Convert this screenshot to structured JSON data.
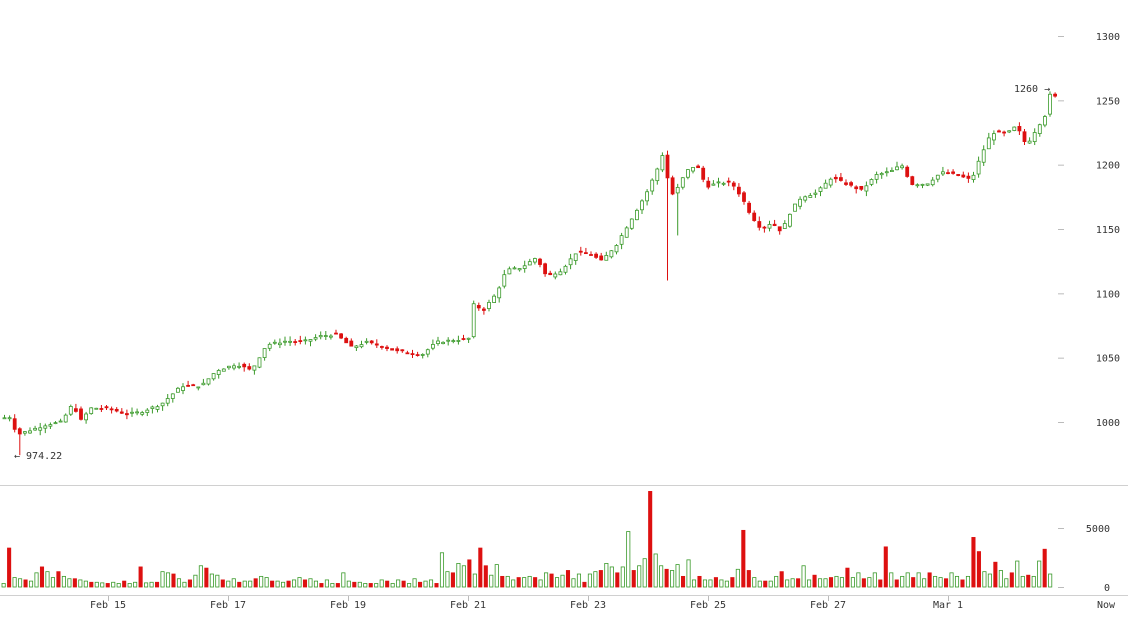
{
  "colors": {
    "up": "#3a9a2a",
    "down": "#dd1010",
    "up_fill": "#ffffff",
    "grid": "#d0d0d0"
  },
  "chart_data": [
    {
      "type": "candlestick",
      "title": "",
      "xlabel": "",
      "ylabel": "",
      "ylim": [
        960,
        1310
      ],
      "y_ticks": [
        1000,
        1050,
        1100,
        1150,
        1200,
        1250,
        1300
      ],
      "x_tick_labels": [
        "Feb 15",
        "Feb 17",
        "Feb 19",
        "Feb 21",
        "Feb 23",
        "Feb 25",
        "Feb 27",
        "Mar 1",
        "Now"
      ],
      "annotations": {
        "low_label": "← 974.22",
        "high_label": "1260 →"
      },
      "close_points": [
        [
          0,
          1003
        ],
        [
          10,
          1004
        ],
        [
          15,
          990
        ],
        [
          30,
          994
        ],
        [
          45,
          998
        ],
        [
          60,
          1000
        ],
        [
          72,
          1015
        ],
        [
          78,
          1000
        ],
        [
          90,
          1011
        ],
        [
          110,
          1010
        ],
        [
          125,
          1006
        ],
        [
          140,
          1008
        ],
        [
          160,
          1014
        ],
        [
          180,
          1028
        ],
        [
          200,
          1028
        ],
        [
          215,
          1040
        ],
        [
          235,
          1045
        ],
        [
          250,
          1040
        ],
        [
          265,
          1060
        ],
        [
          285,
          1063
        ],
        [
          300,
          1062
        ],
        [
          320,
          1067
        ],
        [
          335,
          1068
        ],
        [
          350,
          1058
        ],
        [
          365,
          1062
        ],
        [
          380,
          1059
        ],
        [
          395,
          1055
        ],
        [
          410,
          1054
        ],
        [
          420,
          1052
        ],
        [
          435,
          1062
        ],
        [
          455,
          1064
        ],
        [
          467,
          1064
        ],
        [
          470,
          1092
        ],
        [
          482,
          1087
        ],
        [
          495,
          1100
        ],
        [
          505,
          1118
        ],
        [
          520,
          1120
        ],
        [
          535,
          1128
        ],
        [
          545,
          1113
        ],
        [
          560,
          1118
        ],
        [
          575,
          1132
        ],
        [
          590,
          1130
        ],
        [
          600,
          1125
        ],
        [
          615,
          1138
        ],
        [
          630,
          1158
        ],
        [
          645,
          1178
        ],
        [
          655,
          1195
        ],
        [
          663,
          1212
        ],
        [
          668,
          1175
        ],
        [
          675,
          1180
        ],
        [
          685,
          1195
        ],
        [
          695,
          1200
        ],
        [
          705,
          1183
        ],
        [
          718,
          1186
        ],
        [
          730,
          1186
        ],
        [
          740,
          1175
        ],
        [
          750,
          1160
        ],
        [
          760,
          1150
        ],
        [
          770,
          1155
        ],
        [
          780,
          1148
        ],
        [
          790,
          1165
        ],
        [
          800,
          1175
        ],
        [
          815,
          1178
        ],
        [
          830,
          1190
        ],
        [
          845,
          1185
        ],
        [
          860,
          1180
        ],
        [
          875,
          1192
        ],
        [
          890,
          1195
        ],
        [
          900,
          1200
        ],
        [
          910,
          1185
        ],
        [
          925,
          1185
        ],
        [
          940,
          1194
        ],
        [
          955,
          1192
        ],
        [
          970,
          1188
        ],
        [
          980,
          1208
        ],
        [
          990,
          1225
        ],
        [
          1005,
          1224
        ],
        [
          1015,
          1230
        ],
        [
          1025,
          1215
        ],
        [
          1035,
          1228
        ],
        [
          1045,
          1240
        ],
        [
          1050,
          1260
        ],
        [
          1054,
          1252
        ]
      ]
    },
    {
      "type": "bar",
      "title": "",
      "ylabel": "",
      "ylim": [
        0,
        8500
      ],
      "y_ticks": [
        0,
        5000
      ],
      "values": [
        300,
        3300,
        800,
        700,
        600,
        500,
        1200,
        1700,
        1300,
        800,
        1300,
        900,
        700,
        700,
        600,
        500,
        400,
        400,
        350,
        300,
        400,
        300,
        500,
        300,
        400,
        1700,
        350,
        400,
        400,
        1300,
        1200,
        1100,
        700,
        400,
        600,
        1000,
        1800,
        1600,
        1100,
        1000,
        600,
        500,
        700,
        400,
        500,
        500,
        700,
        900,
        800,
        500,
        500,
        400,
        500,
        600,
        800,
        600,
        700,
        500,
        300,
        600,
        300,
        300,
        1200,
        500,
        400,
        400,
        300,
        300,
        300,
        600,
        500,
        300,
        600,
        500,
        300,
        700,
        400,
        500,
        600,
        300,
        2900,
        1300,
        1200,
        2000,
        1800,
        2300,
        1100,
        3300,
        1800,
        1000,
        1900,
        900,
        900,
        600,
        800,
        800,
        900,
        800,
        600,
        1200,
        1100,
        800,
        1000,
        1400,
        700,
        1100,
        400,
        1100,
        1300,
        1400,
        2000,
        1700,
        1200,
        1700,
        4700,
        1400,
        1800,
        2400,
        8100,
        2800,
        1800,
        1500,
        1400,
        1900,
        900,
        2300,
        600,
        900,
        600,
        600,
        800,
        600,
        500,
        800,
        1500,
        4800,
        1400,
        800,
        500,
        500,
        500,
        900,
        1300,
        600,
        700,
        700,
        1800,
        600,
        1000,
        700,
        700,
        800,
        900,
        800,
        1600,
        800,
        1200,
        700,
        800,
        1200,
        600,
        3400,
        1200,
        600,
        900,
        1200,
        800,
        1200,
        700,
        1200,
        900,
        800,
        700,
        1200,
        900,
        600,
        900,
        4200,
        3000,
        1300,
        1100,
        2100,
        1400,
        700,
        1200,
        2200,
        900,
        1000,
        900,
        2200,
        3200,
        1100
      ],
      "x_tick_labels": [
        "Feb 15",
        "Feb 17",
        "Feb 19",
        "Feb 21",
        "Feb 23",
        "Feb 25",
        "Feb 27",
        "Mar 1",
        "Now"
      ]
    }
  ]
}
